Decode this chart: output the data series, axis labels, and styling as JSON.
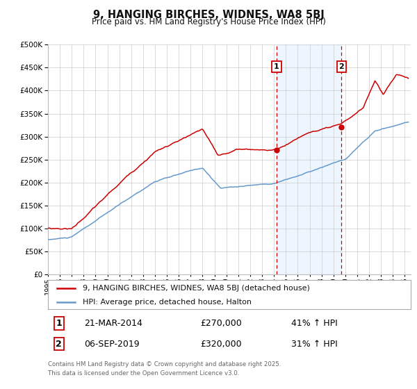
{
  "title": "9, HANGING BIRCHES, WIDNES, WA8 5BJ",
  "subtitle": "Price paid vs. HM Land Registry's House Price Index (HPI)",
  "red_label": "9, HANGING BIRCHES, WIDNES, WA8 5BJ (detached house)",
  "blue_label": "HPI: Average price, detached house, Halton",
  "transaction1_date": "21-MAR-2014",
  "transaction1_price": 270000,
  "transaction1_hpi": "41% ↑ HPI",
  "transaction2_date": "06-SEP-2019",
  "transaction2_price": 320000,
  "transaction2_hpi": "31% ↑ HPI",
  "footnote1": "Contains HM Land Registry data © Crown copyright and database right 2025.",
  "footnote2": "This data is licensed under the Open Government Licence v3.0.",
  "ylim": [
    0,
    500000
  ],
  "yticks": [
    0,
    50000,
    100000,
    150000,
    200000,
    250000,
    300000,
    350000,
    400000,
    450000,
    500000
  ],
  "xlim_start": 1995.0,
  "xlim_end": 2025.5,
  "red_color": "#cc0000",
  "blue_color": "#6699cc",
  "vline1_x": 2014.22,
  "vline2_x": 2019.67,
  "marker1_x": 2014.22,
  "marker1_y": 270000,
  "marker2_x": 2019.67,
  "marker2_y": 320000,
  "grid_color": "#cccccc",
  "bg_color": "#ffffff",
  "shade_color": "#ddeeff",
  "shade_alpha": 0.5
}
